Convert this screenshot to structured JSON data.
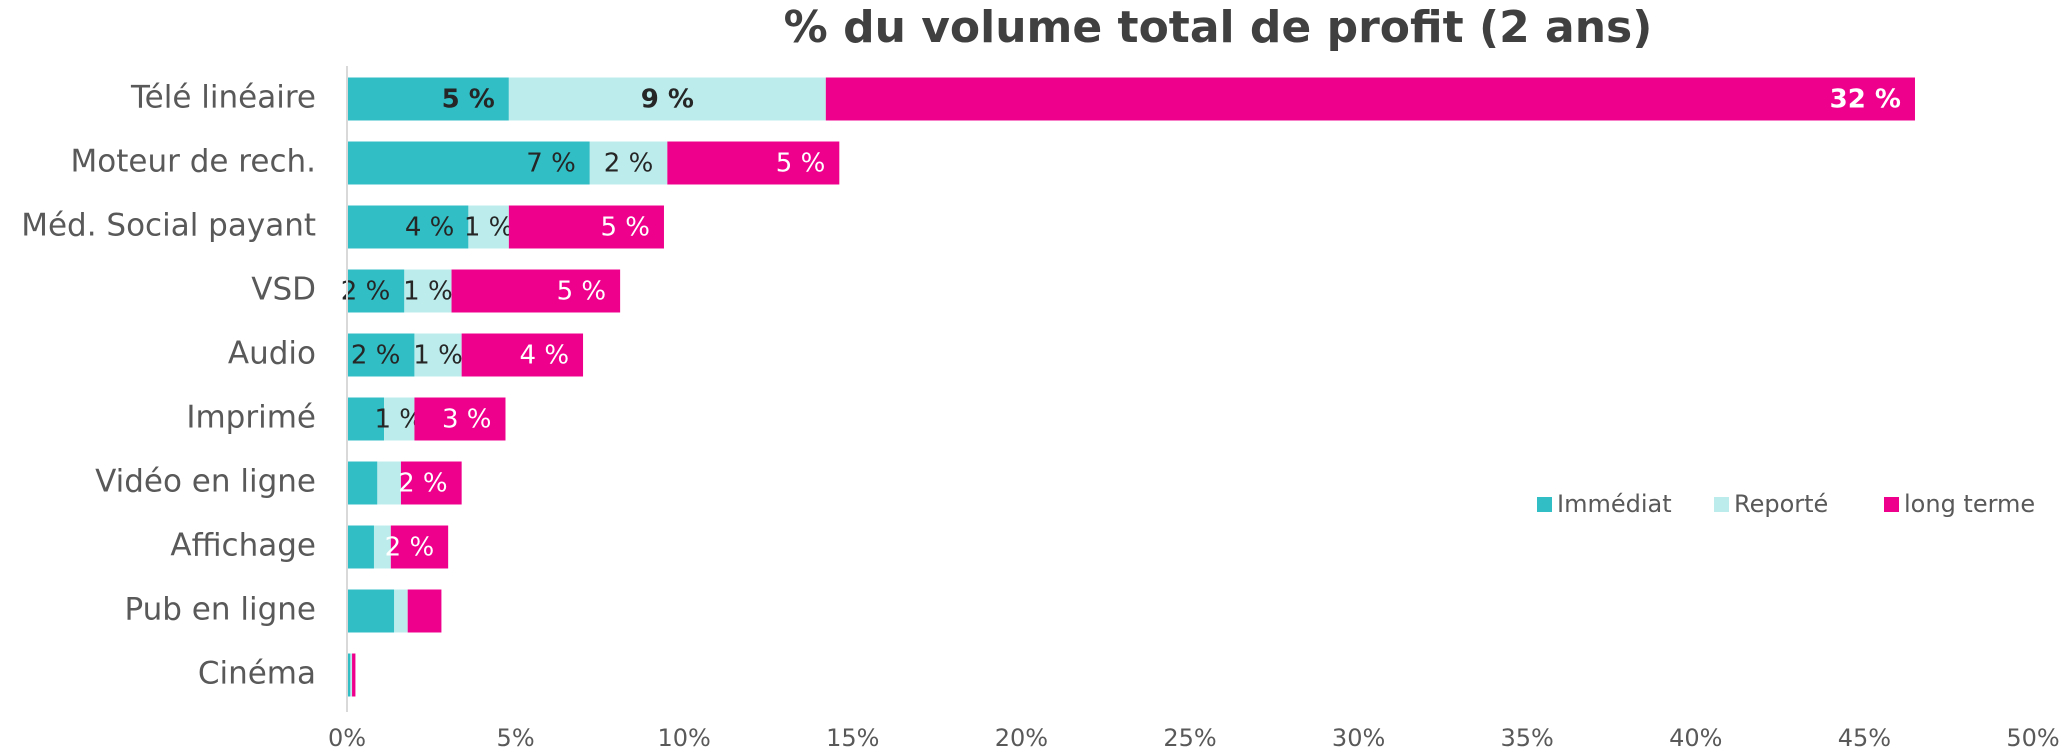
{
  "chart_data": {
    "type": "stacked-bar-horizontal",
    "title": "% du volume total de profit (2 ans)",
    "categories": [
      "Télé linéaire",
      "Moteur de rech.",
      "Méd. Social payant",
      "VSD",
      "Audio",
      "Imprimé",
      "Vidéo en ligne",
      "Affichage",
      "Pub en ligne",
      "Cinéma"
    ],
    "series": [
      {
        "name": "Immédiat",
        "color": "#31bec4",
        "values": [
          4.8,
          7.2,
          3.6,
          1.7,
          2.0,
          1.1,
          0.9,
          0.8,
          1.4,
          0.1
        ],
        "value_labels": [
          "5 %",
          "7 %",
          "4 %",
          "2 %",
          "2 %",
          null,
          null,
          null,
          null,
          null
        ]
      },
      {
        "name": "Reporté",
        "color": "#bdecec",
        "values": [
          9.4,
          2.3,
          1.2,
          1.4,
          1.4,
          0.9,
          0.7,
          0.5,
          0.4,
          0.05
        ],
        "value_labels": [
          "9 %",
          "2 %",
          "1 %",
          "1 %",
          "1 %",
          "1 %",
          null,
          null,
          null,
          null
        ]
      },
      {
        "name": "long terme",
        "color": "#ef008c",
        "values": [
          32.3,
          5.1,
          4.6,
          5.0,
          3.6,
          2.7,
          1.8,
          1.7,
          1.0,
          0.1
        ],
        "value_labels": [
          "32 %",
          "5 %",
          "5 %",
          "5 %",
          "4 %",
          "3 %",
          "2 %",
          "2 %",
          null,
          null
        ]
      }
    ],
    "xlim": [
      0,
      50
    ],
    "xticks": [
      {
        "value": 0,
        "label": "0%"
      },
      {
        "value": 5,
        "label": "5%"
      },
      {
        "value": 10,
        "label": "10%"
      },
      {
        "value": 15,
        "label": "15%"
      },
      {
        "value": 20,
        "label": "20%"
      },
      {
        "value": 25,
        "label": "25%"
      },
      {
        "value": 30,
        "label": "30%"
      },
      {
        "value": 35,
        "label": "35%"
      },
      {
        "value": 40,
        "label": "40%"
      },
      {
        "value": 45,
        "label": "45%"
      },
      {
        "value": 50,
        "label": "50%"
      }
    ],
    "legend": "right"
  }
}
